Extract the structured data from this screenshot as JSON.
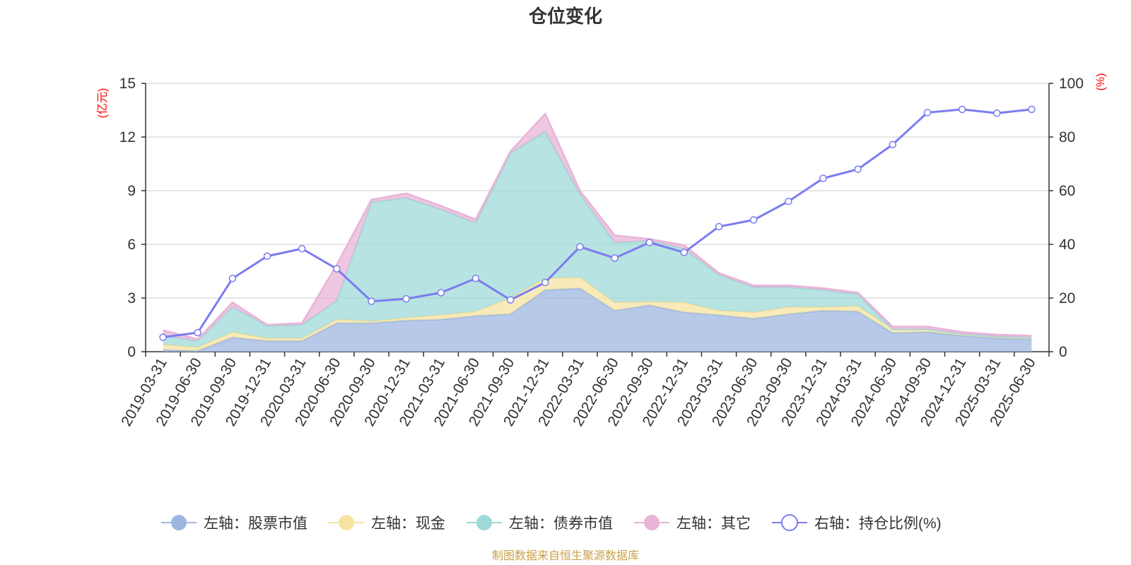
{
  "chart_data": {
    "type": "area",
    "title": "仓位变化",
    "left_axis": {
      "name": "(亿元)",
      "ticks": [
        "0",
        "3",
        "6",
        "9",
        "12",
        "15"
      ],
      "ylim": [
        0,
        15
      ]
    },
    "right_axis": {
      "name": "(%)",
      "ticks": [
        "0",
        "20",
        "40",
        "60",
        "80",
        "100"
      ],
      "ylim": [
        0,
        100
      ]
    },
    "categories": [
      "2019-03-31",
      "2019-06-30",
      "2019-09-30",
      "2019-12-31",
      "2020-03-31",
      "2020-06-30",
      "2020-09-30",
      "2020-12-31",
      "2021-03-31",
      "2021-06-30",
      "2021-09-30",
      "2021-12-31",
      "2022-03-31",
      "2022-06-30",
      "2022-09-30",
      "2022-12-31",
      "2023-03-31",
      "2023-06-30",
      "2023-09-30",
      "2023-12-31",
      "2024-03-31",
      "2024-06-30",
      "2024-09-30",
      "2024-12-31",
      "2025-03-31",
      "2025-06-30"
    ],
    "series": [
      {
        "name": "左轴：股票市值",
        "axis": "left",
        "kind": "stacked-area",
        "color": "#9db7e0",
        "values": [
          0.1,
          0.05,
          0.8,
          0.6,
          0.6,
          1.6,
          1.6,
          1.75,
          1.8,
          2.0,
          2.1,
          3.45,
          3.55,
          2.3,
          2.6,
          2.2,
          2.05,
          1.85,
          2.1,
          2.3,
          2.25,
          1.05,
          1.1,
          0.9,
          0.75,
          0.7
        ]
      },
      {
        "name": "左轴：现金",
        "axis": "left",
        "kind": "stacked-area",
        "color": "#f7e3a1",
        "values": [
          0.3,
          0.2,
          0.3,
          0.15,
          0.15,
          0.2,
          0.1,
          0.15,
          0.25,
          0.25,
          0.9,
          0.65,
          0.6,
          0.45,
          0.2,
          0.55,
          0.25,
          0.35,
          0.4,
          0.2,
          0.3,
          0.2,
          0.15,
          0.1,
          0.1,
          0.1
        ]
      },
      {
        "name": "左轴：债券市值",
        "axis": "left",
        "kind": "stacked-area",
        "color": "#9fd9d9",
        "values": [
          0.5,
          0.35,
          1.4,
          0.7,
          0.75,
          1.05,
          6.65,
          6.7,
          5.9,
          4.95,
          8.1,
          8.2,
          4.65,
          3.35,
          3.4,
          3.0,
          2.0,
          1.4,
          1.1,
          0.95,
          0.65,
          0.0,
          0.0,
          0.0,
          0.0,
          0.0
        ]
      },
      {
        "name": "左轴：其它",
        "axis": "left",
        "kind": "stacked-area",
        "color": "#e8b4d8",
        "values": [
          0.3,
          0.1,
          0.25,
          0.05,
          0.1,
          2.0,
          0.15,
          0.25,
          0.2,
          0.2,
          0.1,
          1.0,
          0.2,
          0.4,
          0.1,
          0.2,
          0.1,
          0.1,
          0.1,
          0.1,
          0.1,
          0.15,
          0.15,
          0.1,
          0.1,
          0.1
        ]
      },
      {
        "name": "右轴：持仓比例(%)",
        "axis": "right",
        "kind": "line",
        "color": "#7b7cf0",
        "values": [
          5.4,
          7.1,
          27.3,
          35.6,
          38.4,
          30.9,
          18.8,
          19.7,
          22.0,
          27.3,
          19.3,
          25.8,
          39.1,
          34.9,
          40.7,
          37.0,
          46.6,
          49.1,
          56.0,
          64.6,
          68.0,
          77.2,
          89.1,
          90.3,
          88.9,
          90.3
        ]
      }
    ],
    "grid": true,
    "legend_position": "bottom"
  },
  "source_text": "制图数据来自恒生聚源数据库"
}
